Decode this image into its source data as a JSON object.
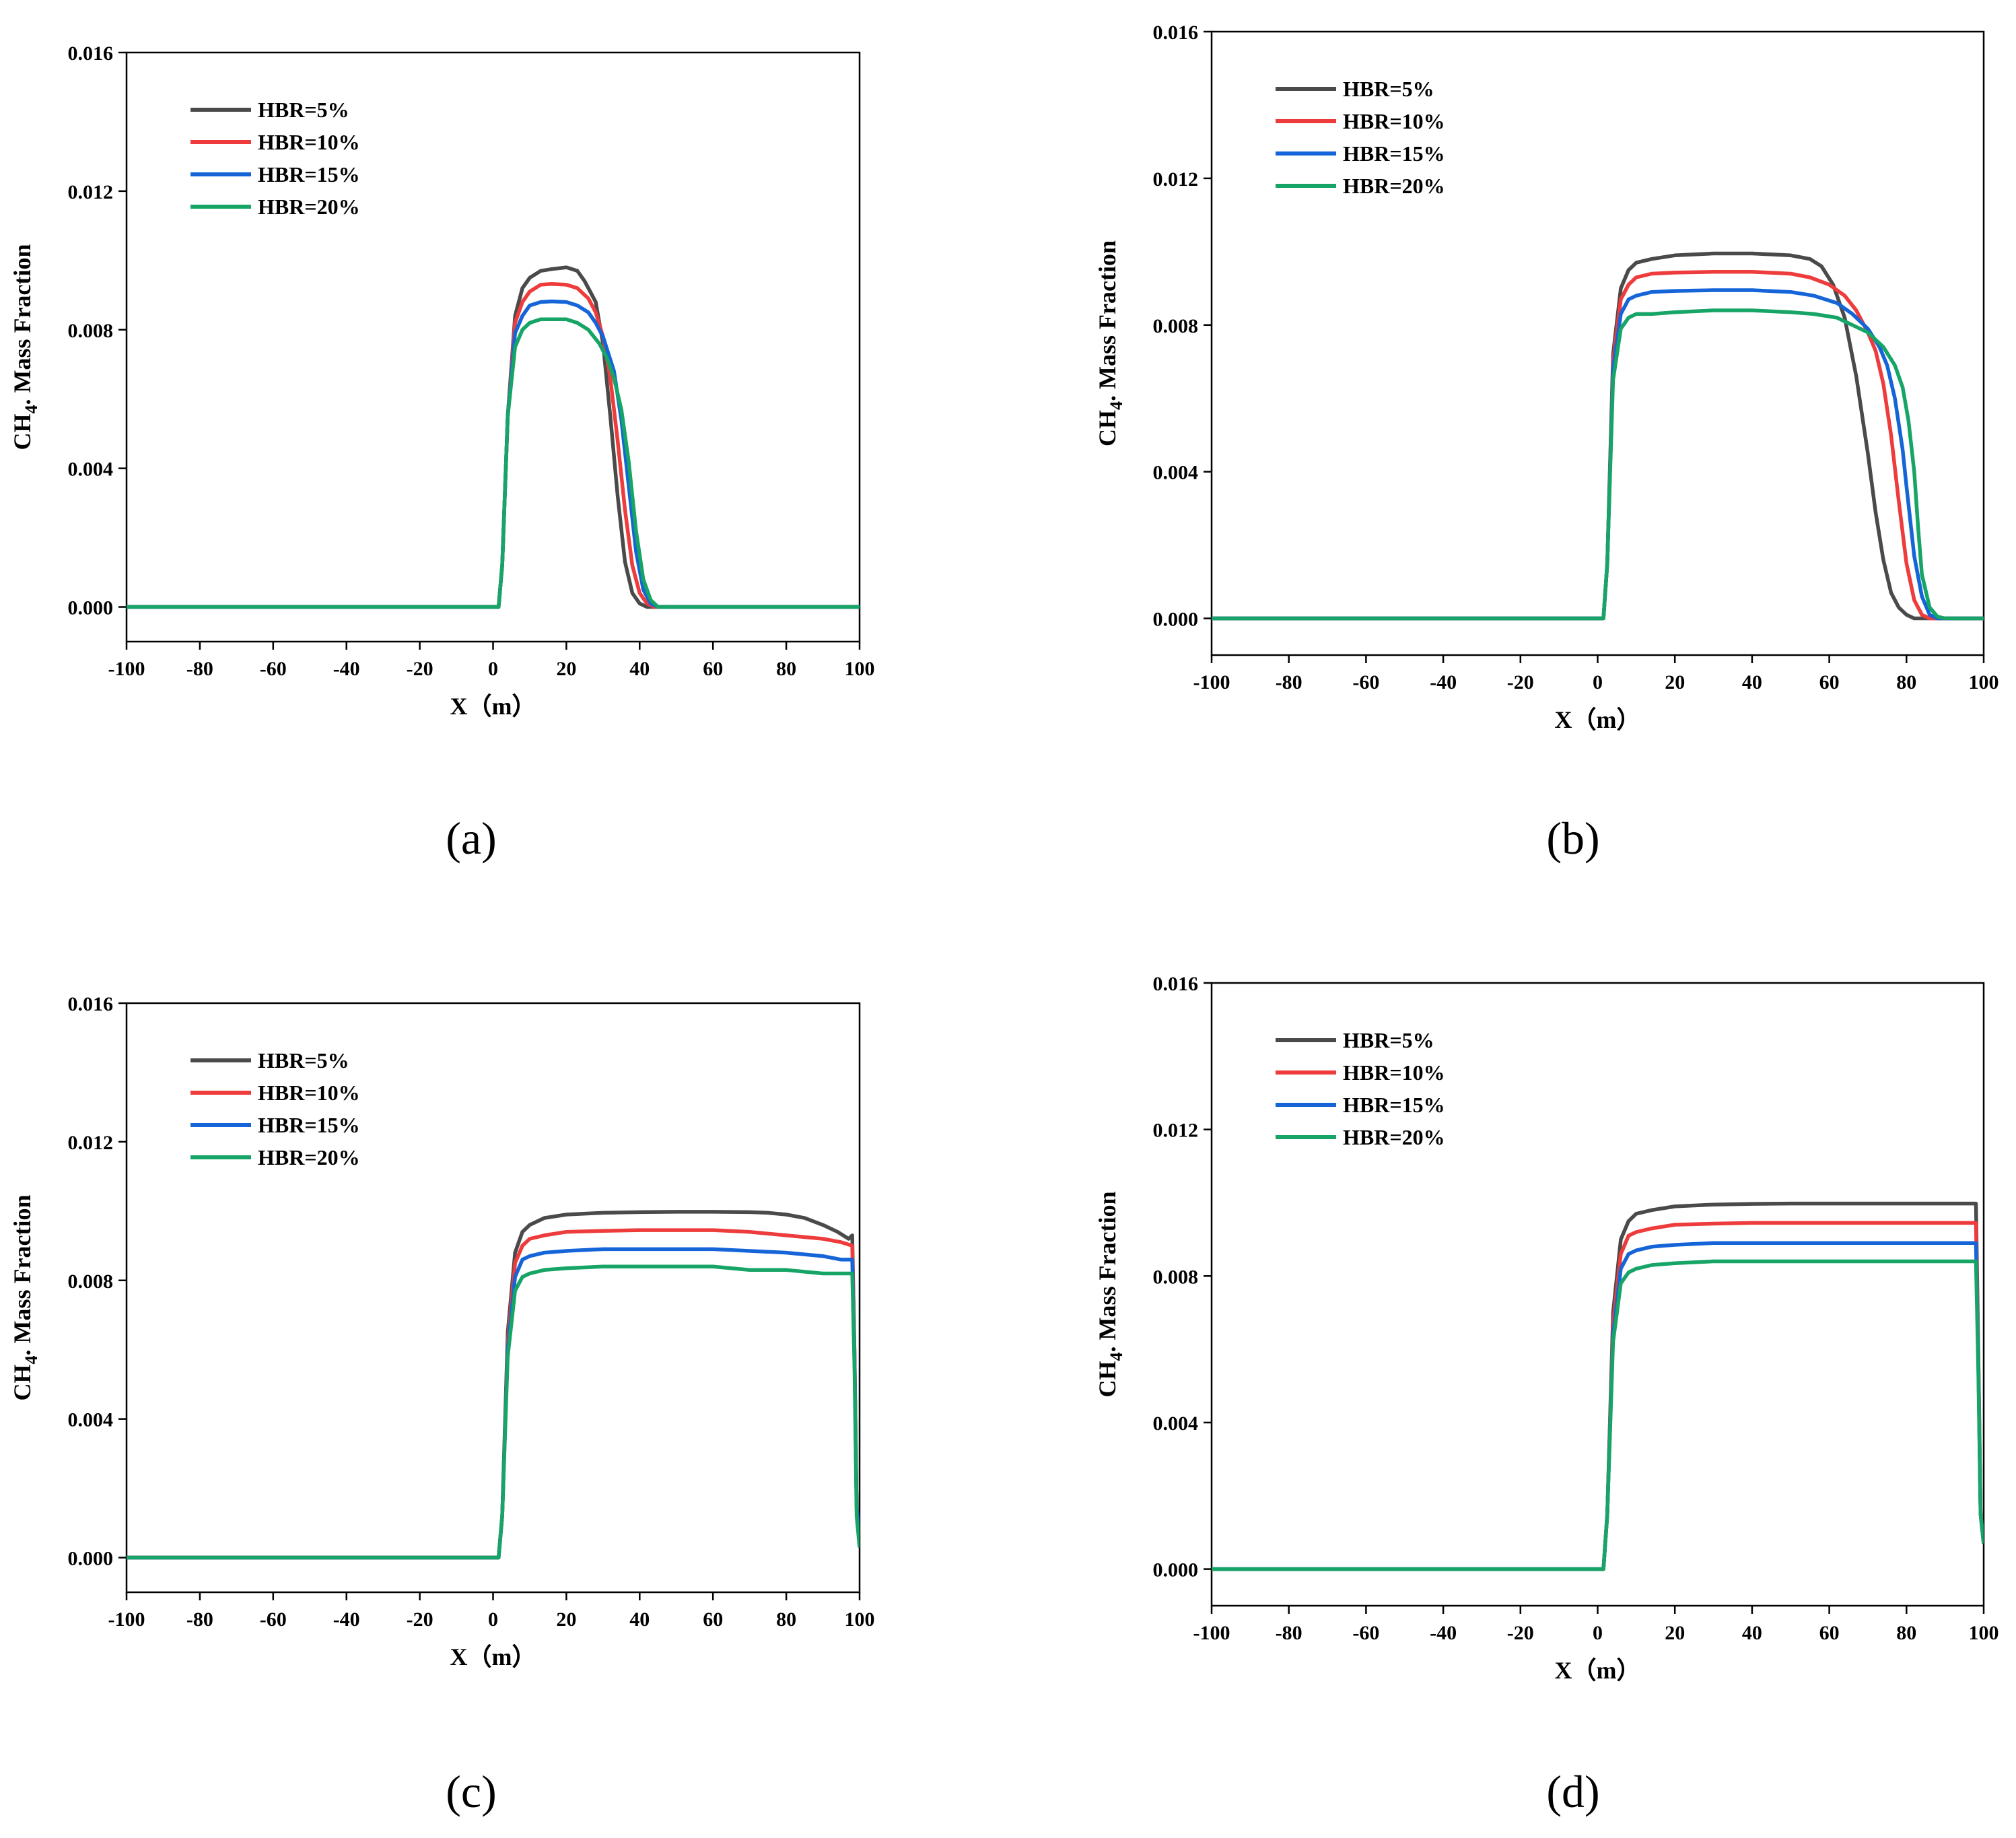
{
  "figure": {
    "panel_labels": [
      "(a)",
      "(b)",
      "(c)",
      "(d)"
    ]
  },
  "series_colors": {
    "HBR=5%": "#4a4a4a",
    "HBR=10%": "#ee3b3b",
    "HBR=15%": "#1565d8",
    "HBR=20%": "#16a566"
  },
  "chart_data": [
    {
      "type": "line",
      "panel": "(a)",
      "title": "",
      "xlabel": "X（m）",
      "ylabel_main": "CH",
      "ylabel_sub": "4",
      "ylabel_rest": ". Mass Fraction",
      "xlim": [
        -100,
        100
      ],
      "ylim": [
        -0.001,
        0.016
      ],
      "xticks": [
        "-100",
        "-80",
        "-60",
        "-40",
        "-20",
        "0",
        "20",
        "40",
        "60",
        "80",
        "100"
      ],
      "yticks": [
        "0.000",
        "0.004",
        "0.008",
        "0.012",
        "0.016"
      ],
      "legend_position": "top-left",
      "series": [
        {
          "name": "HBR=5%",
          "x": [
            -100,
            1.5,
            2.5,
            4,
            6,
            8,
            10,
            13,
            16,
            20,
            23,
            25,
            28,
            30,
            32,
            34,
            36,
            38,
            40,
            42,
            44,
            100
          ],
          "y": [
            0,
            0,
            0.0012,
            0.0055,
            0.0084,
            0.0092,
            0.0095,
            0.0097,
            0.00975,
            0.0098,
            0.0097,
            0.0094,
            0.0088,
            0.0076,
            0.0055,
            0.0032,
            0.0013,
            0.0004,
            0.0001,
            0,
            0,
            0
          ]
        },
        {
          "name": "HBR=10%",
          "x": [
            -100,
            1.5,
            2.5,
            4,
            6,
            8,
            10,
            13,
            16,
            20,
            23,
            26,
            28,
            30,
            32,
            34,
            36,
            38,
            40,
            42,
            44,
            46,
            100
          ],
          "y": [
            0,
            0,
            0.0012,
            0.0055,
            0.0082,
            0.0088,
            0.0091,
            0.0093,
            0.00932,
            0.0093,
            0.0092,
            0.0089,
            0.0085,
            0.0078,
            0.0066,
            0.0048,
            0.0028,
            0.0012,
            0.0004,
            0.0001,
            0,
            0,
            0
          ]
        },
        {
          "name": "HBR=15%",
          "x": [
            -100,
            1.5,
            2.5,
            4,
            6,
            8,
            10,
            13,
            16,
            20,
            23,
            26,
            28,
            30,
            33,
            35,
            37,
            39,
            41,
            43,
            45,
            100
          ],
          "y": [
            0,
            0,
            0.0012,
            0.0055,
            0.0079,
            0.0084,
            0.0087,
            0.0088,
            0.00882,
            0.0088,
            0.0087,
            0.0085,
            0.0082,
            0.0078,
            0.0068,
            0.0054,
            0.0035,
            0.0016,
            0.0005,
            0.0001,
            0,
            0
          ]
        },
        {
          "name": "HBR=20%",
          "x": [
            -100,
            1.5,
            2.5,
            4,
            6,
            8,
            10,
            13,
            16,
            20,
            23,
            26,
            29,
            31,
            33,
            35,
            37,
            39,
            41,
            43,
            45,
            47,
            100
          ],
          "y": [
            0,
            0,
            0.0012,
            0.0055,
            0.0075,
            0.008,
            0.0082,
            0.0083,
            0.0083,
            0.0083,
            0.0082,
            0.008,
            0.0076,
            0.0072,
            0.0066,
            0.0057,
            0.0042,
            0.0022,
            0.0008,
            0.0002,
            0,
            0,
            0
          ]
        }
      ]
    },
    {
      "type": "line",
      "panel": "(b)",
      "title": "",
      "xlabel": "X（m）",
      "ylabel_main": "CH",
      "ylabel_sub": "4",
      "ylabel_rest": ". Mass Fraction",
      "xlim": [
        -100,
        100
      ],
      "ylim": [
        -0.001,
        0.016
      ],
      "xticks": [
        "-100",
        "-80",
        "-60",
        "-40",
        "-20",
        "0",
        "20",
        "40",
        "60",
        "80",
        "100"
      ],
      "yticks": [
        "0.000",
        "0.004",
        "0.008",
        "0.012",
        "0.016"
      ],
      "legend_position": "top-left",
      "series": [
        {
          "name": "HBR=5%",
          "x": [
            -100,
            1.5,
            2.5,
            4,
            6,
            8,
            10,
            14,
            20,
            30,
            40,
            50,
            55,
            58,
            61,
            64,
            67,
            70,
            72,
            74,
            76,
            78,
            80,
            82,
            84,
            100
          ],
          "y": [
            0,
            0,
            0.0015,
            0.0072,
            0.009,
            0.0095,
            0.0097,
            0.0098,
            0.0099,
            0.00995,
            0.00995,
            0.0099,
            0.0098,
            0.0096,
            0.0091,
            0.0082,
            0.0066,
            0.0045,
            0.0029,
            0.0016,
            0.0007,
            0.0003,
            0.0001,
            0,
            0,
            0
          ]
        },
        {
          "name": "HBR=10%",
          "x": [
            -100,
            1.5,
            2.5,
            4,
            6,
            8,
            10,
            14,
            20,
            30,
            40,
            50,
            55,
            60,
            64,
            67,
            70,
            72,
            74,
            76,
            78,
            80,
            82,
            84,
            86,
            100
          ],
          "y": [
            0,
            0,
            0.0015,
            0.007,
            0.0087,
            0.0091,
            0.0093,
            0.0094,
            0.00943,
            0.00945,
            0.00945,
            0.0094,
            0.0093,
            0.0091,
            0.0088,
            0.0084,
            0.0078,
            0.0073,
            0.0064,
            0.005,
            0.0032,
            0.0015,
            0.0005,
            0.0001,
            0,
            0
          ]
        },
        {
          "name": "HBR=15%",
          "x": [
            -100,
            1.5,
            2.5,
            4,
            6,
            8,
            10,
            14,
            20,
            30,
            40,
            50,
            56,
            62,
            66,
            70,
            73,
            75,
            77,
            79,
            80,
            82,
            84,
            86,
            88,
            100
          ],
          "y": [
            0,
            0,
            0.0015,
            0.0068,
            0.0083,
            0.0087,
            0.0088,
            0.0089,
            0.00893,
            0.00895,
            0.00895,
            0.0089,
            0.0088,
            0.0086,
            0.0083,
            0.0079,
            0.0074,
            0.0069,
            0.006,
            0.0046,
            0.0036,
            0.0017,
            0.0006,
            0.0001,
            0,
            0
          ]
        },
        {
          "name": "HBR=20%",
          "x": [
            -100,
            1.5,
            2.5,
            4,
            6,
            8,
            10,
            14,
            20,
            30,
            40,
            50,
            56,
            62,
            66,
            70,
            74,
            77,
            79,
            80.5,
            82,
            83,
            84,
            86,
            88,
            90,
            100
          ],
          "y": [
            0,
            0,
            0.0015,
            0.0065,
            0.0079,
            0.0082,
            0.0083,
            0.0083,
            0.00835,
            0.0084,
            0.0084,
            0.00835,
            0.0083,
            0.0082,
            0.008,
            0.0078,
            0.0074,
            0.0069,
            0.0063,
            0.0054,
            0.004,
            0.0025,
            0.0012,
            0.0003,
            5e-05,
            0,
            0
          ]
        }
      ]
    },
    {
      "type": "line",
      "panel": "(c)",
      "title": "",
      "xlabel": "X（m）",
      "ylabel_main": "CH",
      "ylabel_sub": "4",
      "ylabel_rest": ". Mass Fraction",
      "xlim": [
        -100,
        100
      ],
      "ylim": [
        -0.001,
        0.016
      ],
      "xticks": [
        "-100",
        "-80",
        "-60",
        "-40",
        "-20",
        "0",
        "20",
        "40",
        "60",
        "80",
        "100"
      ],
      "yticks": [
        "0.000",
        "0.004",
        "0.008",
        "0.012",
        "0.016"
      ],
      "legend_position": "top-left",
      "series": [
        {
          "name": "HBR=5%",
          "x": [
            -100,
            1.5,
            2.5,
            4,
            6,
            8,
            10,
            14,
            20,
            30,
            40,
            50,
            60,
            70,
            75,
            80,
            85,
            90,
            94,
            97,
            98,
            98.6,
            99.2,
            100
          ],
          "y": [
            0,
            0,
            0.0012,
            0.0065,
            0.0088,
            0.0094,
            0.0096,
            0.0098,
            0.0099,
            0.00995,
            0.00997,
            0.00998,
            0.00998,
            0.00997,
            0.00995,
            0.0099,
            0.0098,
            0.0096,
            0.0094,
            0.0092,
            0.0093,
            0.006,
            0.0015,
            0.0003
          ]
        },
        {
          "name": "HBR=10%",
          "x": [
            -100,
            1.5,
            2.5,
            4,
            6,
            8,
            10,
            14,
            20,
            30,
            40,
            50,
            60,
            70,
            80,
            90,
            95,
            98,
            98.6,
            99.2,
            100
          ],
          "y": [
            0,
            0,
            0.0012,
            0.0062,
            0.0085,
            0.009,
            0.0092,
            0.0093,
            0.0094,
            0.00943,
            0.00945,
            0.00945,
            0.00945,
            0.0094,
            0.0093,
            0.0092,
            0.0091,
            0.009,
            0.006,
            0.0015,
            0.0003
          ]
        },
        {
          "name": "HBR=15%",
          "x": [
            -100,
            1.5,
            2.5,
            4,
            6,
            8,
            10,
            14,
            20,
            30,
            40,
            50,
            60,
            70,
            80,
            90,
            95,
            98,
            98.6,
            99.2,
            100
          ],
          "y": [
            0,
            0,
            0.0012,
            0.006,
            0.0081,
            0.0086,
            0.0087,
            0.0088,
            0.00885,
            0.0089,
            0.0089,
            0.0089,
            0.0089,
            0.00885,
            0.0088,
            0.0087,
            0.0086,
            0.0086,
            0.0058,
            0.0015,
            0.0003
          ]
        },
        {
          "name": "HBR=20%",
          "x": [
            -100,
            1.5,
            2.5,
            4,
            6,
            8,
            10,
            14,
            20,
            30,
            40,
            50,
            60,
            70,
            80,
            90,
            95,
            98,
            98.6,
            99.2,
            100
          ],
          "y": [
            0,
            0,
            0.0012,
            0.0058,
            0.0077,
            0.0081,
            0.0082,
            0.0083,
            0.00835,
            0.0084,
            0.0084,
            0.0084,
            0.0084,
            0.0083,
            0.0083,
            0.0082,
            0.0082,
            0.0082,
            0.0055,
            0.0012,
            0.0003
          ]
        }
      ]
    },
    {
      "type": "line",
      "panel": "(d)",
      "title": "",
      "xlabel": "X（m）",
      "ylabel_main": "CH",
      "ylabel_sub": "4",
      "ylabel_rest": ". Mass Fraction",
      "xlim": [
        -100,
        100
      ],
      "ylim": [
        -0.001,
        0.016
      ],
      "xticks": [
        "-100",
        "-80",
        "-60",
        "-40",
        "-20",
        "0",
        "20",
        "40",
        "60",
        "80",
        "100"
      ],
      "yticks": [
        "0.000",
        "0.004",
        "0.008",
        "0.012",
        "0.016"
      ],
      "legend_position": "top-left",
      "series": [
        {
          "name": "HBR=5%",
          "x": [
            -100,
            1.5,
            2.5,
            4,
            6,
            8,
            10,
            14,
            20,
            30,
            40,
            50,
            60,
            70,
            80,
            90,
            98,
            98.6,
            99.2,
            100
          ],
          "y": [
            0,
            0,
            0.0015,
            0.007,
            0.009,
            0.0095,
            0.0097,
            0.0098,
            0.0099,
            0.00995,
            0.00997,
            0.00998,
            0.00998,
            0.00998,
            0.00998,
            0.00998,
            0.00998,
            0.006,
            0.0015,
            0.0007
          ]
        },
        {
          "name": "HBR=10%",
          "x": [
            -100,
            1.5,
            2.5,
            4,
            6,
            8,
            10,
            14,
            20,
            30,
            40,
            50,
            60,
            70,
            80,
            90,
            98,
            98.6,
            99.2,
            100
          ],
          "y": [
            0,
            0,
            0.0015,
            0.0067,
            0.0086,
            0.0091,
            0.0092,
            0.0093,
            0.0094,
            0.00943,
            0.00945,
            0.00945,
            0.00945,
            0.00945,
            0.00945,
            0.00945,
            0.00945,
            0.0058,
            0.0015,
            0.0007
          ]
        },
        {
          "name": "HBR=15%",
          "x": [
            -100,
            1.5,
            2.5,
            4,
            6,
            8,
            10,
            14,
            20,
            30,
            40,
            50,
            60,
            70,
            80,
            90,
            98,
            98.6,
            99.2,
            100
          ],
          "y": [
            0,
            0,
            0.0015,
            0.0064,
            0.0082,
            0.0086,
            0.0087,
            0.0088,
            0.00885,
            0.0089,
            0.0089,
            0.0089,
            0.0089,
            0.0089,
            0.0089,
            0.0089,
            0.0089,
            0.0056,
            0.0015,
            0.0007
          ]
        },
        {
          "name": "HBR=20%",
          "x": [
            -100,
            1.5,
            2.5,
            4,
            6,
            8,
            10,
            14,
            20,
            30,
            40,
            50,
            60,
            70,
            80,
            90,
            98,
            98.6,
            99.2,
            100
          ],
          "y": [
            0,
            0,
            0.0015,
            0.0062,
            0.0078,
            0.0081,
            0.0082,
            0.0083,
            0.00835,
            0.0084,
            0.0084,
            0.0084,
            0.0084,
            0.0084,
            0.0084,
            0.0084,
            0.0084,
            0.0054,
            0.0015,
            0.0007
          ]
        }
      ]
    }
  ]
}
